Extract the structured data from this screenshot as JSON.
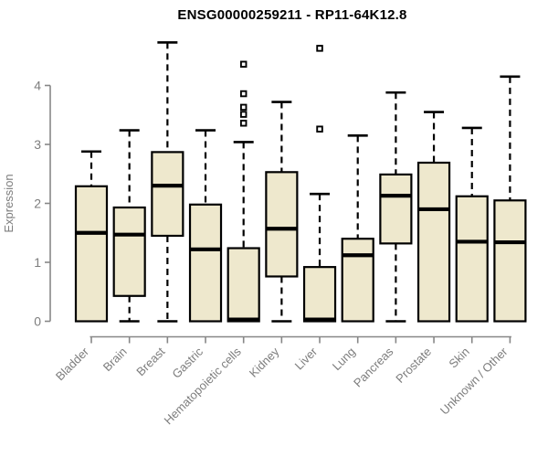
{
  "page_title": "ENSG00000259211 - RP11-64K12.8",
  "chart_data": {
    "type": "boxplot",
    "title": "ENSG00000259211 - RP11-64K12.8",
    "xlabel": "",
    "ylabel": "Expression",
    "ylim": [
      0,
      4
    ],
    "yticks": [
      "0",
      "1",
      "2",
      "3",
      "4"
    ],
    "grid": false,
    "legend": "none",
    "categories": [
      "Bladder",
      "Brain",
      "Breast",
      "Gastric",
      "Hematopoietic cells",
      "Kidney",
      "Liver",
      "Lung",
      "Pancreas",
      "Prostate",
      "Skin",
      "Unknown / Other"
    ],
    "series": [
      {
        "name": "Bladder",
        "whisker_low": 0,
        "q1": 0,
        "median": 1.5,
        "q3": 2.29,
        "whisker_high": 2.88,
        "outliers": []
      },
      {
        "name": "Brain",
        "whisker_low": 0,
        "q1": 0.43,
        "median": 1.47,
        "q3": 1.93,
        "whisker_high": 3.24,
        "outliers": []
      },
      {
        "name": "Breast",
        "whisker_low": 0,
        "q1": 1.45,
        "median": 2.3,
        "q3": 2.87,
        "whisker_high": 4.73,
        "outliers": []
      },
      {
        "name": "Gastric",
        "whisker_low": 0,
        "q1": 0,
        "median": 1.22,
        "q3": 1.98,
        "whisker_high": 3.24,
        "outliers": []
      },
      {
        "name": "Hematopoietic cells",
        "whisker_low": 0,
        "q1": 0,
        "median": 0.03,
        "q3": 1.24,
        "whisker_high": 3.04,
        "outliers": [
          3.36,
          3.51,
          3.63,
          3.86,
          4.36
        ]
      },
      {
        "name": "Kidney",
        "whisker_low": 0,
        "q1": 0.76,
        "median": 1.57,
        "q3": 2.53,
        "whisker_high": 3.72,
        "outliers": []
      },
      {
        "name": "Liver",
        "whisker_low": 0,
        "q1": 0,
        "median": 0.03,
        "q3": 0.92,
        "whisker_high": 2.16,
        "outliers": [
          3.26,
          4.63
        ]
      },
      {
        "name": "Lung",
        "whisker_low": 0,
        "q1": 0,
        "median": 1.12,
        "q3": 1.4,
        "whisker_high": 3.15,
        "outliers": []
      },
      {
        "name": "Pancreas",
        "whisker_low": 0,
        "q1": 1.32,
        "median": 2.13,
        "q3": 2.49,
        "whisker_high": 3.88,
        "outliers": []
      },
      {
        "name": "Prostate",
        "whisker_low": 0,
        "q1": 0,
        "median": 1.9,
        "q3": 2.69,
        "whisker_high": 3.55,
        "outliers": []
      },
      {
        "name": "Skin",
        "whisker_low": 0,
        "q1": 0,
        "median": 1.35,
        "q3": 2.12,
        "whisker_high": 3.28,
        "outliers": []
      },
      {
        "name": "Unknown / Other",
        "whisker_low": 0,
        "q1": 0,
        "median": 1.34,
        "q3": 2.05,
        "whisker_high": 4.15,
        "outliers": []
      }
    ],
    "colors": {
      "box_fill": "#EEE8CD",
      "box_border": "#000000",
      "median": "#000000",
      "whisker": "#000000",
      "outlier": "#000000",
      "axis": "#878787",
      "tick_label": "#7d7d7d",
      "title": "#000000",
      "background": "#ffffff"
    }
  }
}
